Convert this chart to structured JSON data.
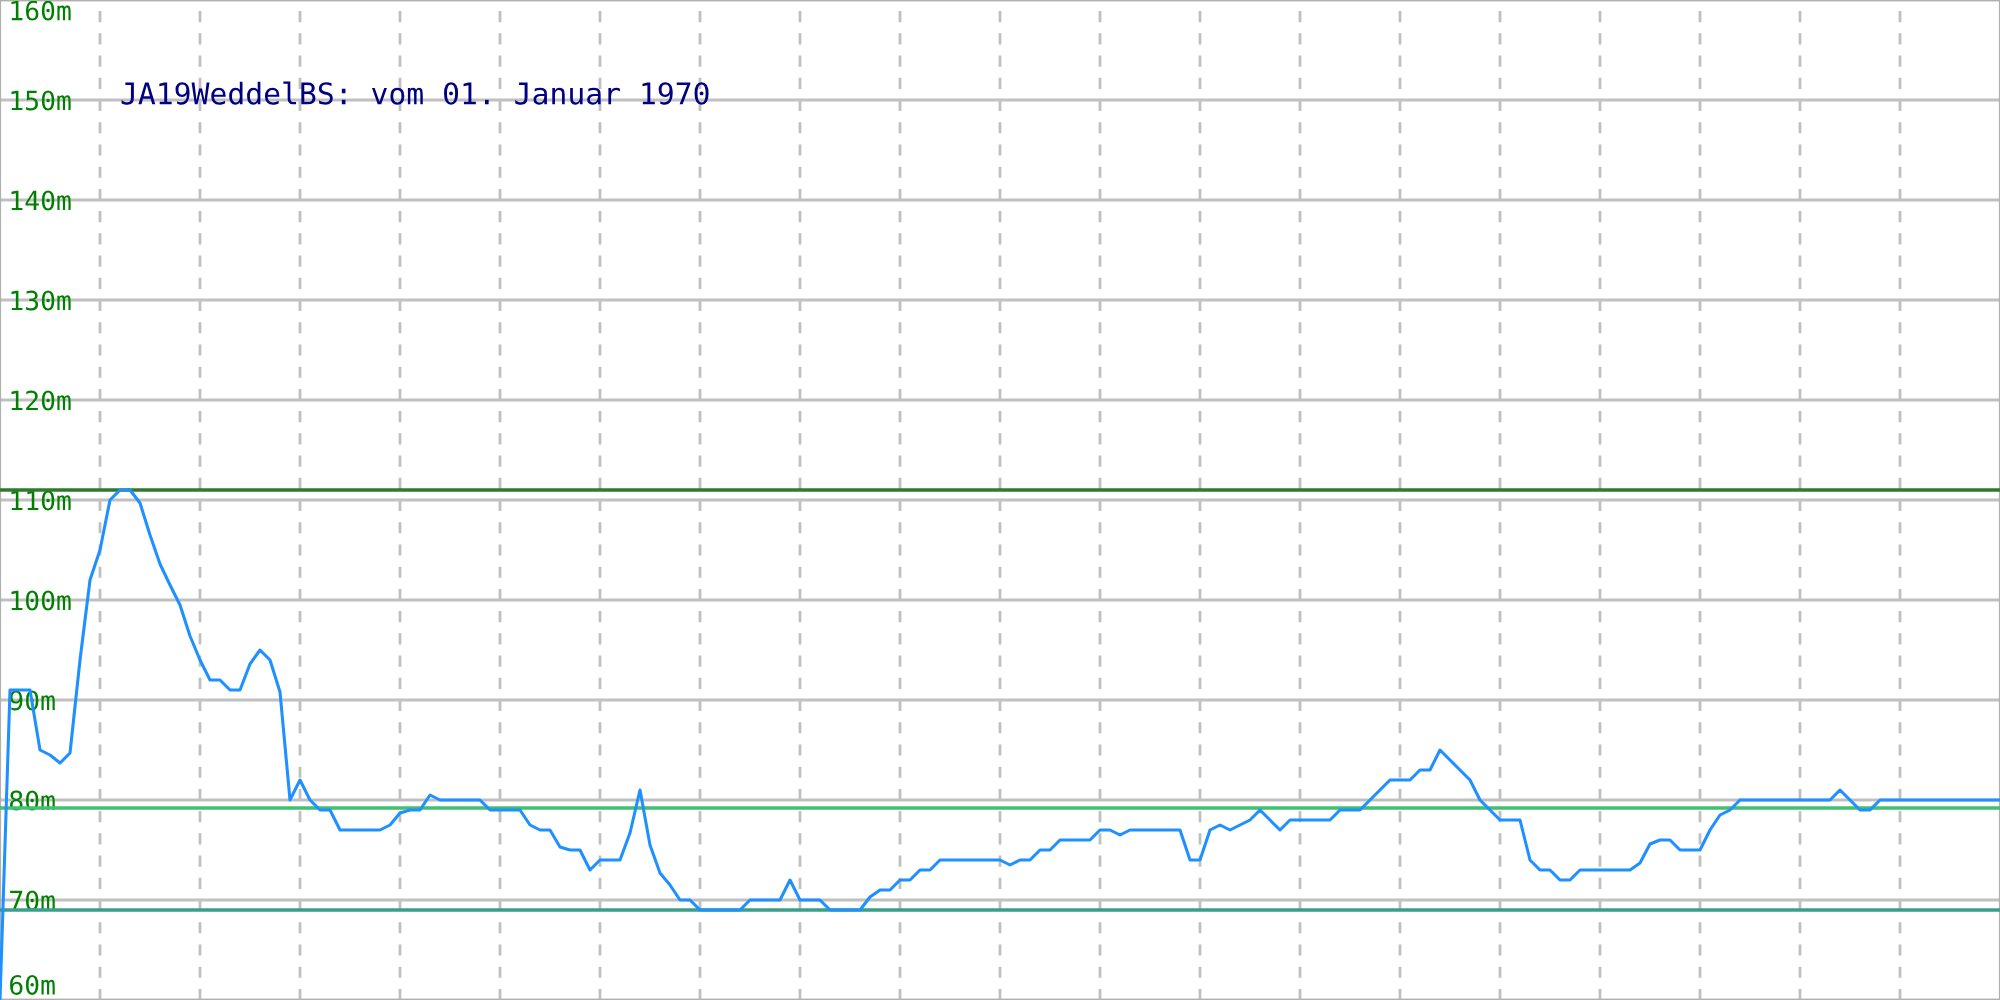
{
  "chart_data": {
    "type": "line",
    "title": "JA19WeddelBS: vom 01. Januar 1970",
    "categories": [
      null,
      null,
      null,
      null,
      null,
      null,
      null,
      null,
      null,
      null,
      null,
      null,
      null,
      null,
      null,
      null,
      null,
      null,
      null,
      null,
      null,
      null,
      null,
      null,
      null,
      null,
      null,
      null,
      null,
      null,
      null,
      null,
      null,
      null,
      null,
      null,
      null,
      null,
      null,
      null,
      null,
      null,
      null,
      null,
      null,
      null,
      null,
      null,
      null,
      null,
      null,
      null,
      null,
      null,
      null,
      null,
      null,
      null,
      null,
      null,
      null,
      null,
      null,
      null,
      null,
      null,
      null,
      null,
      null,
      null,
      null,
      null,
      null,
      null,
      null,
      null,
      null,
      null,
      null,
      null,
      null,
      null,
      null,
      null,
      null,
      null,
      null,
      null,
      null,
      null,
      null,
      null,
      null,
      null,
      null,
      null,
      null,
      null,
      null,
      null,
      null,
      null,
      null,
      null,
      null,
      null,
      null,
      null,
      null,
      null,
      null,
      null,
      null,
      null,
      null,
      null,
      null,
      null,
      null,
      null,
      null,
      null,
      null,
      null,
      null,
      null,
      null,
      null,
      null,
      null,
      null,
      null,
      null,
      null,
      null,
      null,
      null,
      null,
      null,
      null,
      null,
      null,
      null,
      null,
      null,
      null,
      null,
      null,
      null,
      null,
      null,
      null,
      null,
      null,
      null,
      null,
      null,
      null,
      null,
      null,
      null,
      null,
      null,
      null,
      null,
      null,
      null,
      null,
      null,
      null,
      null,
      null,
      null,
      null,
      null,
      null,
      null,
      null,
      null,
      null,
      null,
      null,
      null,
      null,
      null,
      null,
      null,
      null,
      null,
      null,
      null,
      null,
      null,
      null,
      null,
      null,
      null,
      null,
      null,
      null,
      null
    ],
    "series": [
      {
        "color": "#1e90ff",
        "values": [
          60,
          91,
          91,
          91,
          85,
          84.5,
          83.7,
          84.7,
          94,
          102,
          105,
          110,
          111,
          111,
          109.7,
          106.5,
          103.6,
          101.5,
          99.5,
          96.4,
          94,
          92,
          92,
          91,
          91,
          93.6,
          95,
          94,
          90.8,
          80,
          82,
          80,
          79,
          79,
          77,
          77,
          77,
          77,
          77,
          77.5,
          78.7,
          79,
          79,
          80.5,
          80,
          80,
          80,
          80,
          80,
          79,
          79,
          79,
          79,
          77.5,
          77,
          77,
          75.3,
          75,
          75,
          73,
          74,
          74,
          74,
          76.7,
          81,
          75.5,
          72.7,
          71.5,
          70,
          70,
          69,
          69,
          69,
          69,
          69,
          70,
          70,
          70,
          70,
          72,
          70,
          70,
          70,
          69,
          69,
          69,
          69,
          70.3,
          71,
          71,
          72,
          72,
          73,
          73,
          74,
          74,
          74,
          74,
          74,
          74,
          74,
          73.5,
          74,
          74,
          75,
          75,
          76,
          76,
          76,
          76,
          77,
          77,
          76.5,
          77,
          77,
          77,
          77,
          77,
          77,
          74,
          74,
          77,
          77.5,
          77,
          77.5,
          78,
          79,
          78,
          77,
          78,
          78,
          78,
          78,
          78,
          79,
          79,
          79,
          80,
          81,
          82,
          82,
          82,
          83,
          83,
          85,
          84,
          83,
          82,
          80,
          79,
          78,
          78,
          78,
          74,
          73,
          73,
          72,
          72,
          73,
          73,
          73,
          73,
          73,
          73,
          73.7,
          75.6,
          76,
          76,
          75,
          75,
          75,
          77,
          78.5,
          79,
          80,
          80,
          80,
          80,
          80,
          80,
          80,
          80,
          80,
          80,
          81,
          80,
          79,
          79,
          80,
          80,
          80,
          80,
          80,
          80,
          80,
          80,
          80,
          80,
          80,
          80,
          80
        ]
      }
    ],
    "ylim": [
      60,
      160
    ],
    "yticks": [
      {
        "value": 60,
        "label": "60m"
      },
      {
        "value": 70,
        "label": "70m"
      },
      {
        "value": 80,
        "label": "80m"
      },
      {
        "value": 90,
        "label": "90m"
      },
      {
        "value": 100,
        "label": "100m"
      },
      {
        "value": 110,
        "label": "110m"
      },
      {
        "value": 120,
        "label": "120m"
      },
      {
        "value": 130,
        "label": "130m"
      },
      {
        "value": 140,
        "label": "140m"
      },
      {
        "value": 150,
        "label": "150m"
      },
      {
        "value": 160,
        "label": "160m"
      }
    ],
    "ref_lines": [
      {
        "axis": "y",
        "value": 111,
        "color": "#2d7a2d"
      },
      {
        "axis": "y",
        "value": 79.2,
        "color": "#40c070"
      },
      {
        "axis": "y",
        "value": 69,
        "color": "#3a9e8c"
      }
    ],
    "grid": true,
    "tick_labels": "y"
  }
}
